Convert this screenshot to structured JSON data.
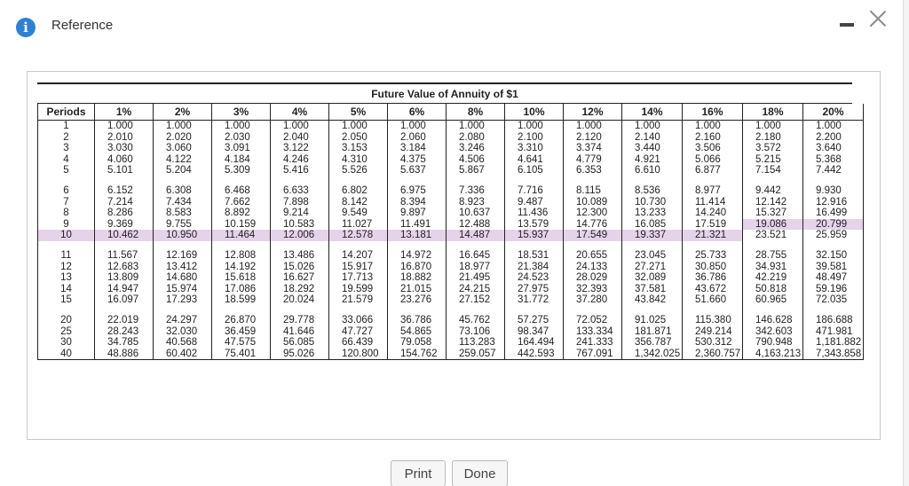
{
  "dialog": {
    "title": "Reference",
    "info_icon": "info-icon",
    "minimize_label": "-",
    "close_label": "×"
  },
  "table": {
    "title": "Future Value of Annuity of $1",
    "headers": [
      "Periods",
      "1%",
      "2%",
      "3%",
      "4%",
      "5%",
      "6%",
      "8%",
      "10%",
      "12%",
      "14%",
      "16%",
      "18%",
      "20%"
    ],
    "groups": [
      [
        [
          "1",
          "1.000",
          "1.000",
          "1.000",
          "1.000",
          "1.000",
          "1.000",
          "1.000",
          "1.000",
          "1.000",
          "1.000",
          "1.000",
          "1.000",
          "1.000"
        ],
        [
          "2",
          "2.010",
          "2.020",
          "2.030",
          "2.040",
          "2.050",
          "2.060",
          "2.080",
          "2.100",
          "2.120",
          "2.140",
          "2.160",
          "2.180",
          "2.200"
        ],
        [
          "3",
          "3.030",
          "3.060",
          "3.091",
          "3.122",
          "3.153",
          "3.184",
          "3.246",
          "3.310",
          "3.374",
          "3.440",
          "3.506",
          "3.572",
          "3.640"
        ],
        [
          "4",
          "4.060",
          "4.122",
          "4.184",
          "4.246",
          "4.310",
          "4.375",
          "4.506",
          "4.641",
          "4.779",
          "4.921",
          "5.066",
          "5.215",
          "5.368"
        ],
        [
          "5",
          "5.101",
          "5.204",
          "5.309",
          "5.416",
          "5.526",
          "5.637",
          "5.867",
          "6.105",
          "6.353",
          "6.610",
          "6.877",
          "7.154",
          "7.442"
        ]
      ],
      [
        [
          "6",
          "6.152",
          "6.308",
          "6.468",
          "6.633",
          "6.802",
          "6.975",
          "7.336",
          "7.716",
          "8.115",
          "8.536",
          "8.977",
          "9.442",
          "9.930"
        ],
        [
          "7",
          "7.214",
          "7.434",
          "7.662",
          "7.898",
          "8.142",
          "8.394",
          "8.923",
          "9.487",
          "10.089",
          "10.730",
          "11.414",
          "12.142",
          "12.916"
        ],
        [
          "8",
          "8.286",
          "8.583",
          "8.892",
          "9.214",
          "9.549",
          "9.897",
          "10.637",
          "11.436",
          "12.300",
          "13.233",
          "14.240",
          "15.327",
          "16.499"
        ],
        [
          "9",
          "9.369",
          "9.755",
          "10.159",
          "10.583",
          "11.027",
          "11.491",
          "12.488",
          "13.579",
          "14.776",
          "16.085",
          "17.519",
          "19.086",
          "20.799"
        ],
        [
          "10",
          "10.462",
          "10.950",
          "11.464",
          "12.006",
          "12.578",
          "13.181",
          "14.487",
          "15.937",
          "17.549",
          "19.337",
          "21.321",
          "23.521",
          "25.959"
        ]
      ],
      [
        [
          "11",
          "11.567",
          "12.169",
          "12.808",
          "13.486",
          "14.207",
          "14.972",
          "16.645",
          "18.531",
          "20.655",
          "23.045",
          "25.733",
          "28.755",
          "32.150"
        ],
        [
          "12",
          "12.683",
          "13.412",
          "14.192",
          "15.026",
          "15.917",
          "16.870",
          "18.977",
          "21.384",
          "24.133",
          "27.271",
          "30.850",
          "34.931",
          "39.581"
        ],
        [
          "13",
          "13.809",
          "14.680",
          "15.618",
          "16.627",
          "17.713",
          "18.882",
          "21.495",
          "24.523",
          "28.029",
          "32.089",
          "36.786",
          "42.219",
          "48.497"
        ],
        [
          "14",
          "14.947",
          "15.974",
          "17.086",
          "18.292",
          "19.599",
          "21.015",
          "24.215",
          "27.975",
          "32.393",
          "37.581",
          "43.672",
          "50.818",
          "59.196"
        ],
        [
          "15",
          "16.097",
          "17.293",
          "18.599",
          "20.024",
          "21.579",
          "23.276",
          "27.152",
          "31.772",
          "37.280",
          "43.842",
          "51.660",
          "60.965",
          "72.035"
        ]
      ],
      [
        [
          "20",
          "22.019",
          "24.297",
          "26.870",
          "29.778",
          "33.066",
          "36.786",
          "45.762",
          "57.275",
          "72.052",
          "91.025",
          "115.380",
          "146.628",
          "186.688"
        ],
        [
          "25",
          "28.243",
          "32.030",
          "36.459",
          "41.646",
          "47.727",
          "54.865",
          "73.106",
          "98.347",
          "133.334",
          "181.871",
          "249.214",
          "342.603",
          "471.981"
        ],
        [
          "30",
          "34.785",
          "40.568",
          "47.575",
          "56.085",
          "66.439",
          "79.058",
          "113.283",
          "164.494",
          "241.333",
          "356.787",
          "530.312",
          "790.948",
          "1,181.882"
        ],
        [
          "40",
          "48.886",
          "60.402",
          "75.401",
          "95.026",
          "120.800",
          "154.762",
          "259.057",
          "442.593",
          "767.091",
          "1,342.025",
          "2,360.757",
          "4,163.213",
          "7,343.858"
        ]
      ]
    ],
    "highlight_color": "#e5d3ea",
    "highlighted_cells": [
      {
        "period": "10",
        "columns": [
          "Periods",
          "1%",
          "2%",
          "3%",
          "4%",
          "5%",
          "6%",
          "8%",
          "10%",
          "12%",
          "14%",
          "16%"
        ]
      },
      {
        "period": "9",
        "columns": [
          "18%",
          "20%"
        ]
      }
    ]
  },
  "buttons": {
    "print_label": "Print",
    "done_label": "Done"
  }
}
